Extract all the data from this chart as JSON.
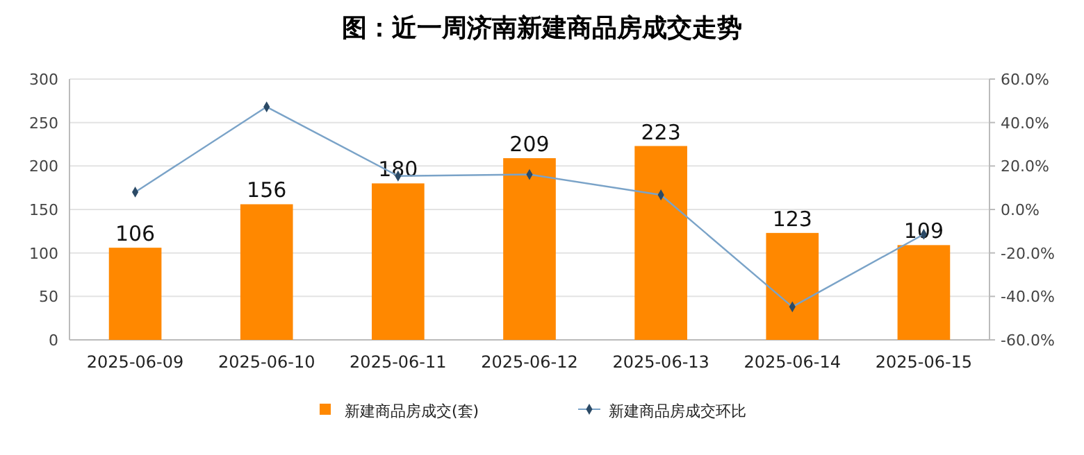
{
  "chart_data": {
    "type": "bar",
    "title": "图：近一周济南新建商品房成交走势",
    "categories": [
      "2025-06-09",
      "2025-06-10",
      "2025-06-11",
      "2025-06-12",
      "2025-06-13",
      "2025-06-14",
      "2025-06-15"
    ],
    "series": [
      {
        "name": "新建商品房成交(套)",
        "color": "#ff8800",
        "values": [
          106,
          156,
          180,
          209,
          223,
          123,
          109
        ],
        "value_labels": [
          "106",
          "156",
          "180",
          "209",
          "223",
          "123",
          "109"
        ]
      },
      {
        "name": "新建商品房成交环比",
        "type": "line",
        "axis": "y2",
        "color": "#7aa3c8",
        "marker": "diamond",
        "values": [
          8,
          47.2,
          15.4,
          16.1,
          6.7,
          -44.8,
          -11.4
        ]
      }
    ],
    "ylim": [
      0,
      300
    ],
    "yticks": [
      0,
      50,
      100,
      150,
      200,
      250,
      300
    ],
    "y2lim": [
      -60,
      60
    ],
    "y2ticks": [
      {
        "value": -60,
        "label": "-60.0%"
      },
      {
        "value": -40,
        "label": "-40.0%"
      },
      {
        "value": -20,
        "label": "-20.0%"
      },
      {
        "value": 0,
        "label": "0.0%"
      },
      {
        "value": 20,
        "label": "20.0%"
      },
      {
        "value": 40,
        "label": "40.0%"
      },
      {
        "value": 60,
        "label": "60.0%"
      }
    ],
    "grid": "y",
    "legend": "bottom"
  }
}
